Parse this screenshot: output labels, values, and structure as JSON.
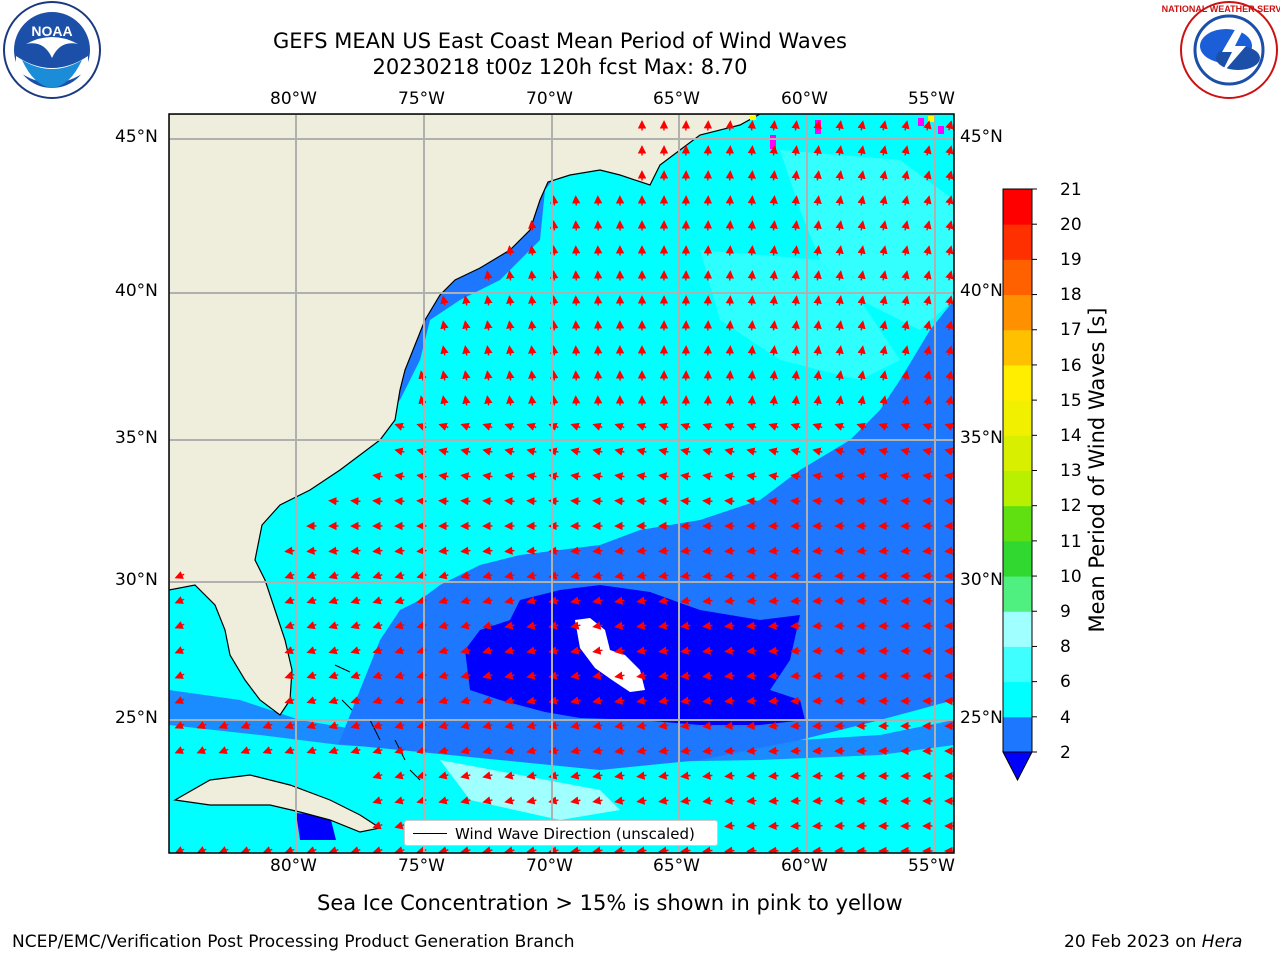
{
  "header": {
    "title_line1": "GEFS MEAN US East Coast Mean Period of Wind Waves",
    "title_line2": "20230218 t00z 120h fcst   Max: 8.70"
  },
  "logos": {
    "left": {
      "icon": "noaa-logo-icon",
      "text": "NOAA",
      "ring_text": "NATIONAL OCEANIC AND ATMOSPHERIC ADMINISTRATION · U.S. DEPARTMENT OF COMMERCE"
    },
    "right": {
      "icon": "nws-logo-icon",
      "ring_text": "NATIONAL WEATHER SERVICE"
    }
  },
  "map": {
    "projection": "cylindrical",
    "lon_range": [
      -85,
      -54.2
    ],
    "lat_range": [
      20.5,
      45.8
    ],
    "lon_ticks": [
      "80°W",
      "75°W",
      "70°W",
      "65°W",
      "60°W",
      "55°W"
    ],
    "lat_ticks": [
      "45°N",
      "40°N",
      "35°N",
      "30°N",
      "25°N"
    ],
    "gridlines": true,
    "land_color": "#efeedc",
    "arrow_color": "#ff0000",
    "ice_colors": [
      "#ff00ff",
      "#ffff00"
    ],
    "legend": {
      "label": "Wind Wave Direction (unscaled)",
      "placement": "bottom-center"
    }
  },
  "colorbar": {
    "label": "Mean Period of Wind Waves [s]",
    "ticks": [
      "21",
      "20",
      "19",
      "18",
      "17",
      "16",
      "15",
      "14",
      "13",
      "12",
      "11",
      "10",
      "9",
      "8",
      "6",
      "4",
      "2"
    ],
    "levels": [
      {
        "range": "2-4",
        "color": "#1e78ff"
      },
      {
        "range": "4-6",
        "color": "#00ffff"
      },
      {
        "range": "6-8",
        "color": "#40ffff"
      },
      {
        "range": "8-9",
        "color": "#a0ffff"
      },
      {
        "range": "9-10",
        "color": "#50f080"
      },
      {
        "range": "10-11",
        "color": "#30d830"
      },
      {
        "range": "11-12",
        "color": "#60e010"
      },
      {
        "range": "12-13",
        "color": "#b8f000"
      },
      {
        "range": "13-14",
        "color": "#d8f000"
      },
      {
        "range": "14-15",
        "color": "#f0f000"
      },
      {
        "range": "15-16",
        "color": "#ffee00"
      },
      {
        "range": "16-17",
        "color": "#ffc000"
      },
      {
        "range": "17-18",
        "color": "#ff9000"
      },
      {
        "range": "18-19",
        "color": "#ff6000"
      },
      {
        "range": "19-20",
        "color": "#ff3000"
      },
      {
        "range": "20-21",
        "color": "#ff0000"
      }
    ],
    "under_color": "#0000ff"
  },
  "footer": {
    "note": "Sea Ice Concentration > 15% is shown in pink to yellow",
    "left": "NCEP/EMC/Verification Post Processing Product Generation Branch",
    "right_date": "20 Feb 2023 on ",
    "right_machine": "Hera"
  }
}
